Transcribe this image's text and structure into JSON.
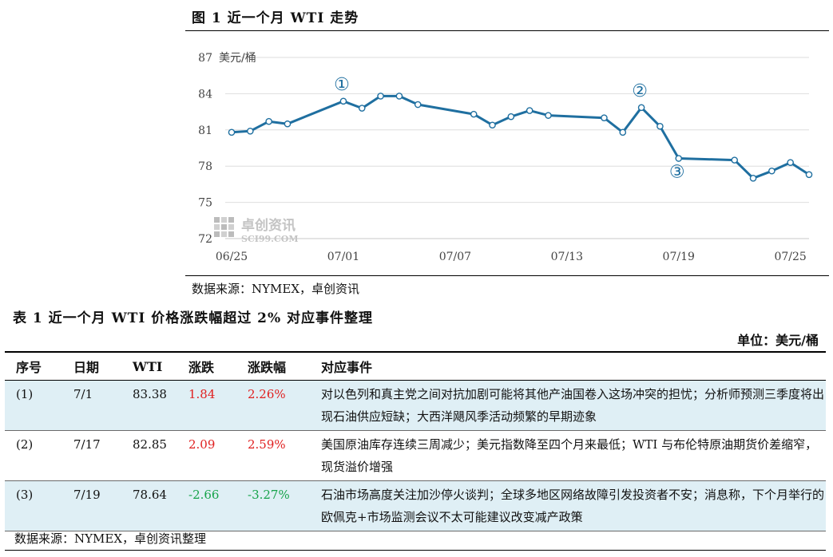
{
  "figure": {
    "title": "图 1  近一个月 WTI 走势",
    "source": "数据来源：NYMEX，卓创资讯",
    "watermark": {
      "name": "卓创资讯",
      "sub": "SCI99.COM"
    }
  },
  "chart_data": {
    "type": "line",
    "ylabel": "美元/桶",
    "ylim": [
      72,
      87
    ],
    "yticks": [
      72,
      75,
      78,
      81,
      84,
      87
    ],
    "x_tick_labels": [
      "06/25",
      "07/01",
      "07/07",
      "07/13",
      "07/19",
      "07/25"
    ],
    "x_tick_days": [
      0,
      6,
      12,
      18,
      24,
      30
    ],
    "grid": "horizontal",
    "color": "#1f6fa0",
    "series": [
      {
        "points": [
          [
            0,
            80.8
          ],
          [
            1,
            80.9
          ],
          [
            2,
            81.7
          ],
          [
            3,
            81.5
          ],
          [
            6,
            83.38
          ],
          [
            7,
            82.8
          ],
          [
            8,
            83.8
          ],
          [
            9,
            83.8
          ],
          [
            10,
            83.1
          ],
          [
            13,
            82.3
          ],
          [
            14,
            81.4
          ],
          [
            15,
            82.1
          ],
          [
            16,
            82.6
          ],
          [
            17,
            82.2
          ],
          [
            20,
            82.0
          ],
          [
            21,
            80.8
          ],
          [
            22,
            82.85
          ],
          [
            23,
            81.3
          ],
          [
            24,
            78.64
          ],
          [
            27,
            78.5
          ],
          [
            28,
            77.0
          ],
          [
            29,
            77.6
          ],
          [
            30,
            78.3
          ],
          [
            31,
            77.3
          ]
        ]
      }
    ],
    "annotations": [
      {
        "text": "①",
        "x": 6,
        "y": 83.38,
        "pos": "above"
      },
      {
        "text": "②",
        "x": 22,
        "y": 82.85,
        "pos": "above"
      },
      {
        "text": "③",
        "x": 24,
        "y": 78.64,
        "pos": "below"
      }
    ]
  },
  "table": {
    "title": "表 1  近一个月 WTI 价格涨跌幅超过 2% 对应事件整理",
    "unit": "单位：美元/桶",
    "headers": [
      "序号",
      "日期",
      "WTI",
      "涨跌",
      "涨跌幅",
      "对应事件"
    ],
    "rows": [
      {
        "no": "(1)",
        "date": "7/1",
        "wti": "83.38",
        "chg": "1.84",
        "pct": "2.26%",
        "event": "对以色列和真主党之间对抗加剧可能将其他产油国卷入这场冲突的担忧；分析师预测三季度将出现石油供应短缺；大西洋飓风季活动频繁的早期迹象"
      },
      {
        "no": "(2)",
        "date": "7/17",
        "wti": "82.85",
        "chg": "2.09",
        "pct": "2.59%",
        "event": "美国原油库存连续三周减少；美元指数降至四个月来最低；WTI 与布伦特原油期货价差缩窄，现货溢价增强"
      },
      {
        "no": "(3)",
        "date": "7/19",
        "wti": "78.64",
        "chg": "-2.66",
        "pct": "-3.27%",
        "event": "石油市场高度关注加沙停火谈判；全球多地区网络故障引发投资者不安；消息称，下个月举行的欧佩克+市场监测会议不太可能建议改变减产政策"
      }
    ],
    "source": "数据来源：NYMEX，卓创资讯整理"
  }
}
